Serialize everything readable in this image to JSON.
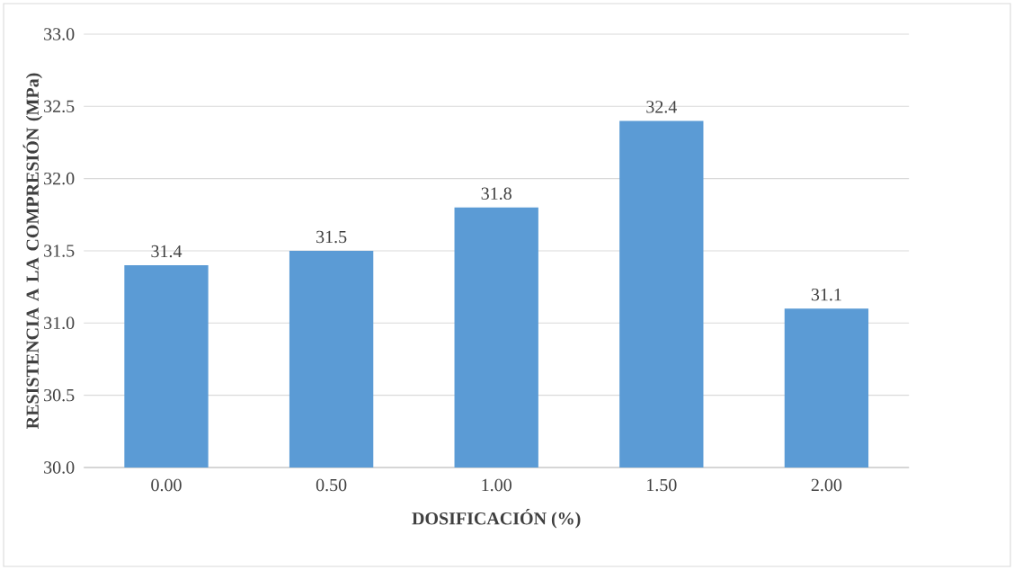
{
  "chart_data": {
    "type": "bar",
    "xlabel": "DOSIFICACIÓN (%)",
    "ylabel": "RESISTENCIA  A LA COMPRESIÓN (MPa)",
    "categories": [
      "0.00",
      "0.50",
      "1.00",
      "1.50",
      "2.00"
    ],
    "values": [
      31.4,
      31.5,
      31.8,
      32.4,
      31.1
    ],
    "color": "#5b9bd5",
    "ylim": [
      30,
      33
    ],
    "yticks": [
      {
        "value": 30,
        "label": "30.0"
      },
      {
        "value": 30.5,
        "label": "30.5"
      },
      {
        "value": 31,
        "label": "31.0"
      },
      {
        "value": 31.5,
        "label": "31.5"
      },
      {
        "value": 32,
        "label": "32.0"
      },
      {
        "value": 32.5,
        "label": "32.5"
      },
      {
        "value": 33,
        "label": "33.0"
      }
    ],
    "grid": "y",
    "data_labels": true
  }
}
